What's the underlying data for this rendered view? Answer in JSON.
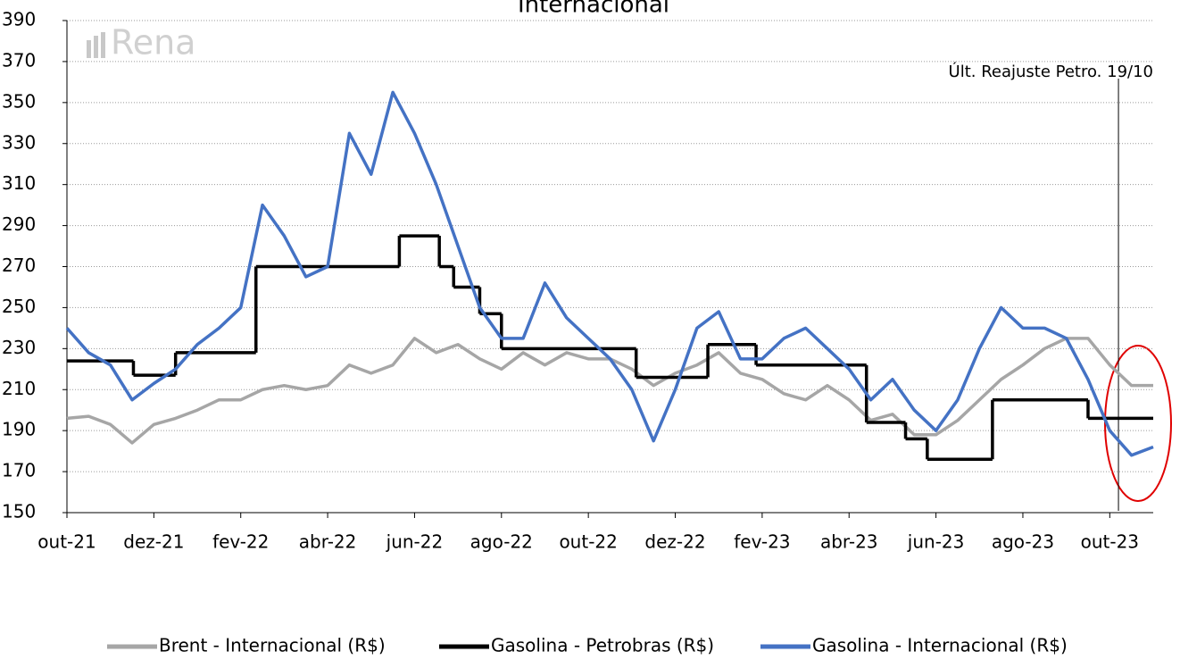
{
  "chart_data": {
    "type": "line",
    "title": "Internacional",
    "watermark": "Rena",
    "annotation": {
      "text": "Últ. Reajuste Petro. 19/10",
      "x": 24.2
    },
    "xlim": [
      0,
      25
    ],
    "xticks": [
      {
        "value": 0,
        "label": "out-21"
      },
      {
        "value": 2,
        "label": "dez-21"
      },
      {
        "value": 4,
        "label": "fev-22"
      },
      {
        "value": 6,
        "label": "abr-22"
      },
      {
        "value": 8,
        "label": "jun-22"
      },
      {
        "value": 10,
        "label": "ago-22"
      },
      {
        "value": 12,
        "label": "out-22"
      },
      {
        "value": 14,
        "label": "dez-22"
      },
      {
        "value": 16,
        "label": "fev-23"
      },
      {
        "value": 18,
        "label": "abr-23"
      },
      {
        "value": 20,
        "label": "jun-23"
      },
      {
        "value": 22,
        "label": "ago-23"
      },
      {
        "value": 24,
        "label": "out-23"
      }
    ],
    "ylim": [
      150,
      390
    ],
    "yticks": [
      150,
      170,
      190,
      210,
      230,
      250,
      270,
      290,
      310,
      330,
      350,
      370,
      390
    ],
    "grid": true,
    "legend": "bottom",
    "x": [
      0,
      0.5,
      1,
      1.5,
      2,
      2.5,
      3,
      3.5,
      4,
      4.5,
      5,
      5.5,
      6,
      6.5,
      7,
      7.5,
      8,
      8.5,
      9,
      9.5,
      10,
      10.5,
      11,
      11.5,
      12,
      12.5,
      13,
      13.5,
      14,
      14.5,
      15,
      15.5,
      16,
      16.5,
      17,
      17.5,
      18,
      18.5,
      19,
      19.5,
      20,
      20.5,
      21,
      21.5,
      22,
      22.5,
      23,
      23.5,
      24,
      24.5,
      25
    ],
    "series": [
      {
        "name": "Brent - Internacional (R$)",
        "color": "#a6a6a6",
        "values": [
          196,
          197,
          193,
          184,
          193,
          196,
          200,
          205,
          205,
          210,
          212,
          210,
          212,
          222,
          218,
          222,
          235,
          228,
          232,
          225,
          220,
          228,
          222,
          228,
          225,
          225,
          220,
          212,
          218,
          222,
          228,
          218,
          215,
          208,
          205,
          212,
          205,
          195,
          198,
          188,
          188,
          195,
          205,
          215,
          222,
          230,
          235,
          235,
          222,
          212,
          212
        ]
      },
      {
        "name": "Gasolina - Petrobras (R$)",
        "color": "#000000",
        "step": true,
        "x": [
          0,
          1.53,
          2.5,
          4.35,
          7.65,
          8.57,
          8.9,
          9.5,
          10.0,
          13.1,
          14.75,
          15.86,
          18.4,
          19.3,
          19.8,
          21.3,
          23.5
        ],
        "values": [
          224,
          217,
          228,
          270,
          285,
          270,
          260,
          247,
          230,
          216,
          232,
          222,
          194,
          186,
          176,
          205,
          196
        ]
      },
      {
        "name": "Gasolina - Internacional (R$)",
        "color": "#4472c4",
        "values": [
          240,
          228,
          222,
          205,
          213,
          220,
          232,
          240,
          250,
          300,
          285,
          265,
          270,
          335,
          315,
          355,
          335,
          310,
          280,
          250,
          235,
          235,
          262,
          245,
          235,
          225,
          210,
          185,
          210,
          240,
          248,
          225,
          225,
          235,
          240,
          230,
          220,
          205,
          215,
          200,
          190,
          205,
          230,
          250,
          240,
          240,
          235,
          215,
          190,
          178,
          182
        ]
      }
    ]
  }
}
